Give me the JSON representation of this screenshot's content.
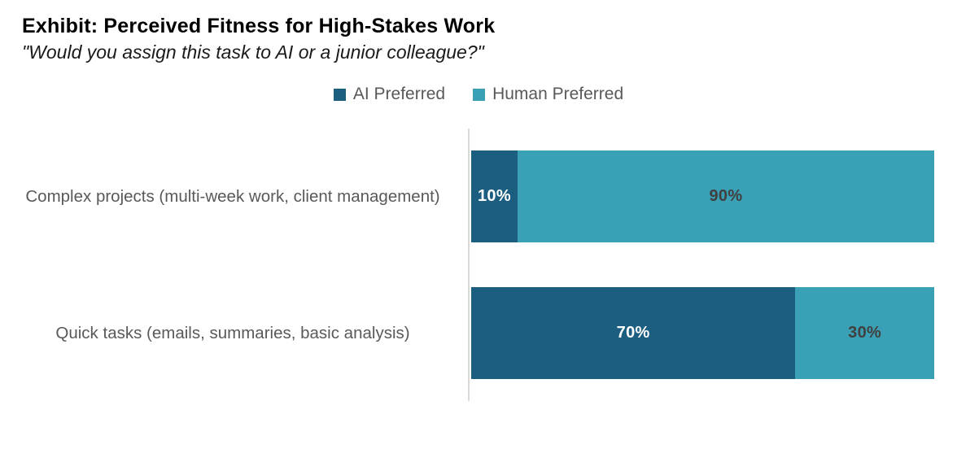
{
  "header": {
    "title": "Exhibit: Perceived Fitness for High-Stakes Work",
    "subtitle": "\"Would you assign this task to AI or a junior colleague?\""
  },
  "legend": {
    "items": [
      {
        "label": "AI Preferred",
        "color": "#1b5e80"
      },
      {
        "label": "Human Preferred",
        "color": "#3aa0b5"
      }
    ]
  },
  "chart_data": {
    "type": "bar",
    "orientation": "horizontal",
    "stacked": true,
    "unit": "%",
    "xlim": [
      0,
      100
    ],
    "grid": false,
    "legend_position": "top",
    "title": "Exhibit: Perceived Fitness for High-Stakes Work",
    "subtitle": "\"Would you assign this task to AI or a junior colleague?\"",
    "categories": [
      "Complex projects (multi-week work, client management)",
      "Quick tasks (emails, summaries, basic analysis)"
    ],
    "series": [
      {
        "name": "AI Preferred",
        "color": "#1b5e80",
        "values": [
          10,
          70
        ]
      },
      {
        "name": "Human Preferred",
        "color": "#3aa0b5",
        "values": [
          90,
          30
        ]
      }
    ],
    "value_labels": [
      [
        "10%",
        "90%"
      ],
      [
        "70%",
        "30%"
      ]
    ]
  }
}
